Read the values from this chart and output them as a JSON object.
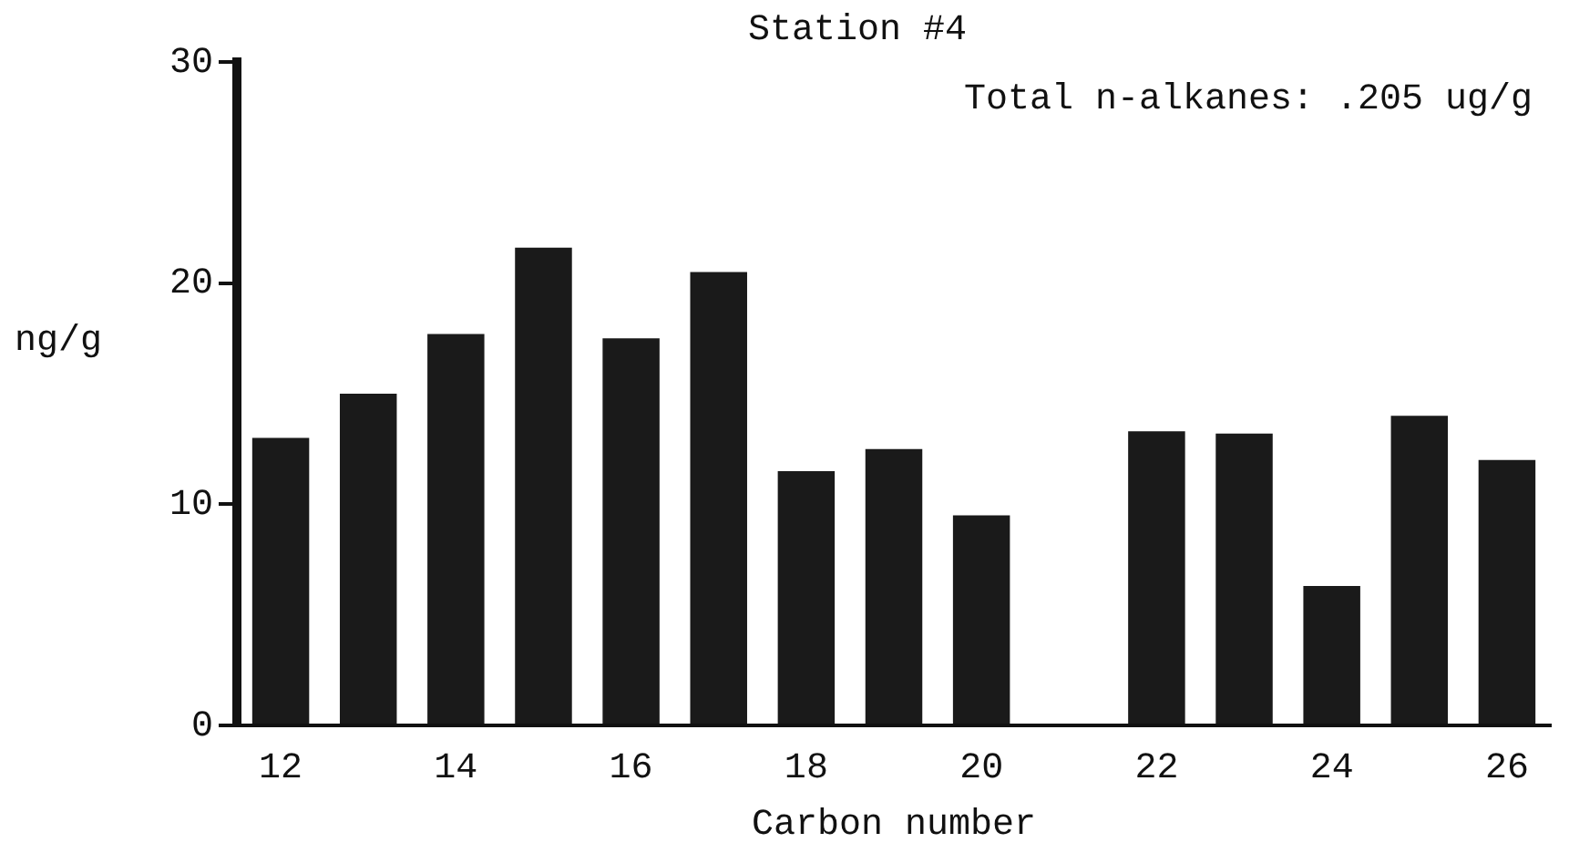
{
  "chart_data": {
    "type": "bar",
    "title": "Station #4",
    "xlabel": "Carbon number",
    "ylabel": "ng/g",
    "annotations": [
      "Total n-alkanes: .205 ug/g"
    ],
    "categories": [
      "12",
      null,
      "14",
      null,
      "16",
      null,
      "18",
      null,
      "20",
      null,
      "22",
      null,
      "24",
      null,
      "26"
    ],
    "values": [
      13,
      15,
      17.7,
      21.6,
      17.5,
      20.5,
      11.5,
      12.5,
      9.5,
      0,
      13.3,
      13.2,
      6.3,
      14,
      12
    ],
    "color": "#1a1a1a",
    "ylim": [
      0,
      30
    ],
    "yticks": [
      0,
      10,
      20,
      30
    ],
    "grid": false,
    "legend": false
  }
}
